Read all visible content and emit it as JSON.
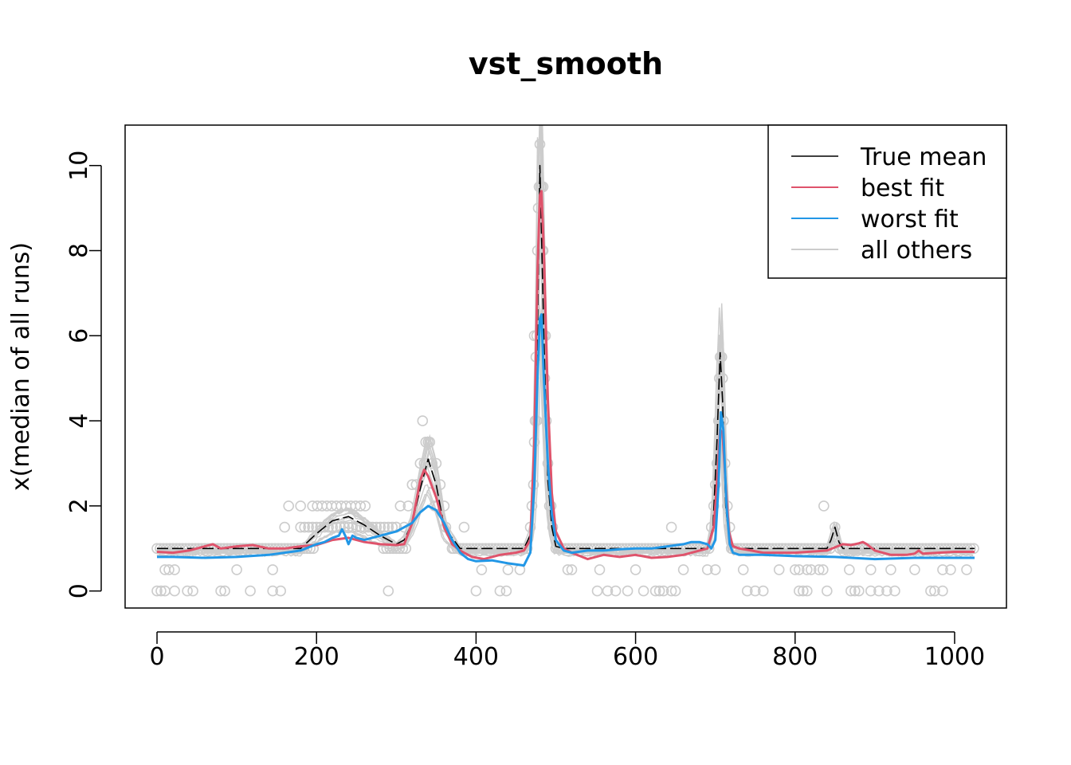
{
  "chart_data": {
    "type": "line",
    "title": "vst_smooth",
    "xlabel": "",
    "ylabel": "x(median of all runs)",
    "xlim": [
      -40,
      1065
    ],
    "ylim": [
      -0.4,
      10.95
    ],
    "x_ticks": [
      0,
      200,
      400,
      600,
      800,
      1000
    ],
    "y_ticks": [
      0,
      2,
      4,
      6,
      8,
      10
    ],
    "legend": {
      "placement": "top-right",
      "entries": [
        {
          "label": "True mean",
          "color": "#000000"
        },
        {
          "label": "best fit",
          "color": "#DF536B"
        },
        {
          "label": "worst fit",
          "color": "#2297E6"
        },
        {
          "label": "all others",
          "color": "#CCCCCC"
        }
      ]
    },
    "colors": {
      "true_mean": "#000000",
      "best_fit": "#DF536B",
      "worst_fit": "#2297E6",
      "others": "#CCCCCC"
    },
    "series": [
      {
        "name": "True mean",
        "color": "#000000",
        "x": [
          0,
          180,
          200,
          220,
          240,
          260,
          280,
          300,
          310,
          320,
          330,
          340,
          350,
          360,
          380,
          460,
          470,
          475,
          480,
          485,
          490,
          495,
          500,
          510,
          690,
          697,
          702,
          706,
          709,
          713,
          718,
          730,
          830,
          840,
          845,
          850,
          855,
          860,
          870,
          1025
        ],
        "y": [
          1,
          1,
          1.35,
          1.65,
          1.75,
          1.55,
          1.3,
          1.1,
          1.2,
          1.6,
          2.4,
          3.1,
          2.5,
          1.5,
          1,
          1,
          1.4,
          3.5,
          10,
          6,
          2.6,
          1.5,
          1.05,
          1,
          1,
          1.5,
          3.5,
          5.6,
          4.5,
          2,
          1.1,
          1,
          1,
          1,
          1.2,
          1.5,
          1.15,
          1,
          1,
          1
        ]
      },
      {
        "name": "best fit",
        "color": "#DF536B",
        "x": [
          0,
          20,
          40,
          60,
          70,
          80,
          100,
          120,
          140,
          160,
          180,
          200,
          220,
          240,
          260,
          280,
          300,
          310,
          320,
          330,
          335,
          340,
          350,
          360,
          370,
          380,
          395,
          410,
          430,
          450,
          460,
          468,
          473,
          477,
          480,
          482,
          485,
          490,
          495,
          500,
          510,
          520,
          540,
          560,
          580,
          600,
          620,
          640,
          660,
          680,
          690,
          698,
          703,
          706,
          709,
          713,
          717,
          722,
          730,
          745,
          760,
          800,
          840,
          860,
          870,
          880,
          885,
          890,
          900,
          920,
          940,
          950,
          955,
          960,
          980,
          1000,
          1025
        ],
        "y": [
          0.92,
          0.9,
          0.95,
          1.05,
          1.1,
          1.0,
          1.05,
          1.08,
          1.0,
          1.0,
          1.05,
          1.08,
          1.2,
          1.25,
          1.15,
          1.1,
          1.08,
          1.1,
          1.6,
          2.6,
          2.85,
          2.7,
          2.2,
          1.5,
          1.1,
          0.95,
          0.8,
          0.75,
          0.85,
          0.9,
          0.95,
          1.2,
          3.5,
          7.5,
          9.3,
          9.4,
          8,
          4.5,
          2.3,
          1.4,
          1.0,
          0.9,
          0.75,
          0.85,
          0.8,
          0.85,
          0.78,
          0.8,
          0.85,
          0.95,
          1.0,
          1.5,
          2.8,
          3.8,
          3.7,
          2.5,
          1.4,
          1.05,
          1.0,
          0.95,
          0.9,
          0.9,
          0.95,
          1.1,
          1.08,
          1.12,
          1.15,
          1.1,
          0.95,
          0.85,
          0.85,
          0.88,
          0.95,
          0.88,
          0.9,
          0.92,
          0.92
        ]
      },
      {
        "name": "worst fit",
        "color": "#2297E6",
        "x": [
          0,
          20,
          60,
          100,
          140,
          180,
          200,
          210,
          220,
          228,
          232,
          236,
          240,
          245,
          250,
          260,
          280,
          300,
          320,
          330,
          340,
          350,
          360,
          370,
          380,
          390,
          400,
          420,
          440,
          460,
          468,
          473,
          477,
          480,
          482,
          485,
          490,
          495,
          500,
          510,
          520,
          540,
          560,
          580,
          600,
          620,
          640,
          660,
          670,
          680,
          690,
          695,
          700,
          704,
          707,
          710,
          714,
          718,
          722,
          730,
          760,
          800,
          850,
          900,
          950,
          1000,
          1025
        ],
        "y": [
          0.8,
          0.8,
          0.78,
          0.8,
          0.85,
          0.95,
          1.1,
          1.15,
          1.25,
          1.3,
          1.45,
          1.3,
          1.1,
          1.3,
          1.25,
          1.2,
          1.3,
          1.4,
          1.6,
          1.85,
          2.0,
          1.9,
          1.6,
          1.2,
          0.9,
          0.75,
          0.7,
          0.72,
          0.65,
          0.6,
          0.9,
          2.5,
          5.0,
          6.4,
          6.5,
          5,
          3,
          1.8,
          1.2,
          0.95,
          0.9,
          0.95,
          0.95,
          0.98,
          1.0,
          1.0,
          1.05,
          1.1,
          1.15,
          1.15,
          1.1,
          1.0,
          1.2,
          2.5,
          4.2,
          3.8,
          2.0,
          1.1,
          0.9,
          0.85,
          0.85,
          0.82,
          0.8,
          0.75,
          0.78,
          0.78,
          0.78
        ]
      }
    ],
    "points_description_values": {
      "baseline_points": [
        1,
        0.5,
        0
      ],
      "peak_points": [
        10.5,
        9.5,
        9,
        8,
        6,
        5.5,
        5,
        4,
        3,
        2,
        1.5
      ]
    }
  }
}
